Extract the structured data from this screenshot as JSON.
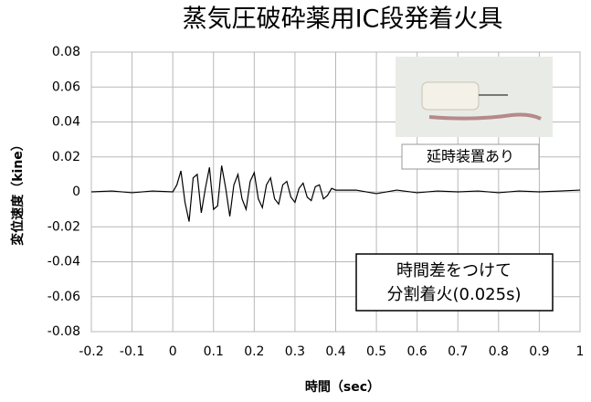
{
  "chart_data": {
    "type": "line",
    "title": "蒸気圧破砕薬用IC段発着火具",
    "title_color": "#e8141c",
    "xlabel": "時間（sec）",
    "ylabel": "変位速度（kine）",
    "annotations": [
      "延時装置あり",
      "時間差をつけて",
      "分割着火(0.025s)"
    ],
    "xlim": [
      -0.2,
      1
    ],
    "ylim": [
      -0.08,
      0.08
    ],
    "xticks": [
      -0.2,
      -0.1,
      0,
      0.1,
      0.2,
      0.3,
      0.4,
      0.5,
      0.6,
      0.7,
      0.8,
      0.9,
      1
    ],
    "yticks": [
      0.08,
      0.06,
      0.04,
      0.02,
      0,
      -0.02,
      -0.04,
      -0.06,
      -0.08
    ],
    "grid": true,
    "x": [
      -0.2,
      -0.15,
      -0.1,
      -0.05,
      0,
      0.01,
      0.02,
      0.03,
      0.04,
      0.05,
      0.06,
      0.07,
      0.08,
      0.09,
      0.1,
      0.11,
      0.12,
      0.13,
      0.14,
      0.15,
      0.16,
      0.17,
      0.18,
      0.19,
      0.2,
      0.21,
      0.22,
      0.23,
      0.24,
      0.25,
      0.26,
      0.27,
      0.28,
      0.29,
      0.3,
      0.31,
      0.32,
      0.33,
      0.34,
      0.35,
      0.36,
      0.37,
      0.38,
      0.39,
      0.4,
      0.45,
      0.5,
      0.55,
      0.6,
      0.65,
      0.7,
      0.75,
      0.8,
      0.85,
      0.9,
      0.95,
      1
    ],
    "series": [
      {
        "color": "#000000",
        "values": [
          0,
          0.0005,
          -0.0005,
          0.0005,
          0,
          0.004,
          0.012,
          -0.006,
          -0.017,
          0.008,
          0.01,
          -0.012,
          0.002,
          0.014,
          -0.01,
          -0.008,
          0.015,
          0.002,
          -0.014,
          0.004,
          0.01,
          -0.004,
          -0.01,
          0.006,
          0.011,
          -0.004,
          -0.009,
          0.004,
          0.008,
          -0.004,
          -0.007,
          0.004,
          0.006,
          -0.003,
          -0.006,
          0.002,
          0.005,
          -0.003,
          -0.005,
          0.003,
          0.004,
          -0.004,
          -0.002,
          0.002,
          0.001,
          0.001,
          -0.001,
          0.001,
          -0.0005,
          0.0005,
          0,
          0.0005,
          -0.0005,
          0.0005,
          0,
          0.0005,
          0.001
        ]
      }
    ]
  }
}
